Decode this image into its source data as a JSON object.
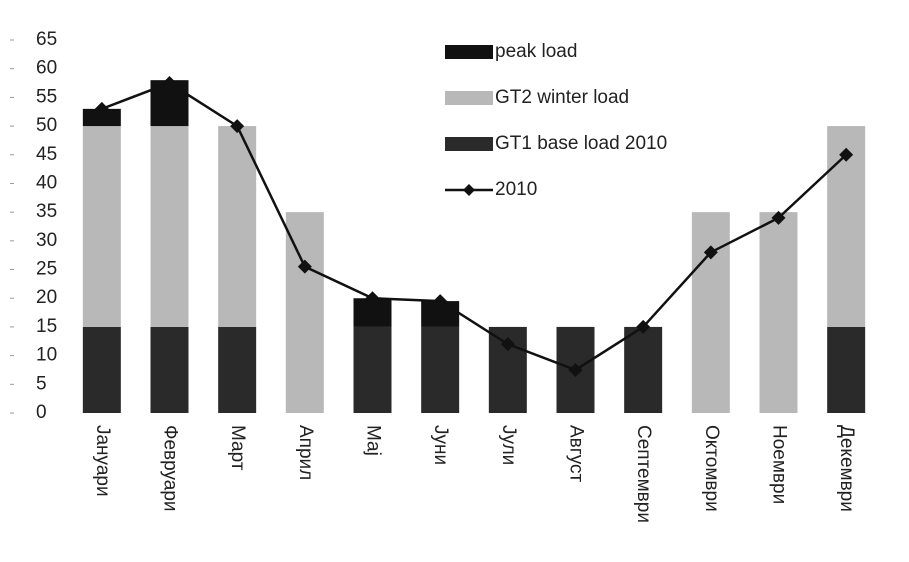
{
  "chart_data": {
    "type": "bar",
    "stacked": true,
    "categories": [
      "Јануари",
      "Февруари",
      "Март",
      "Април",
      "Мај",
      "Јуни",
      "Јули",
      "Август",
      "Септември",
      "Октомври",
      "Ноември",
      "Декември"
    ],
    "series": [
      {
        "name": "peak load",
        "type": "bar",
        "color": "#111111",
        "values": [
          3,
          8,
          0,
          0,
          5,
          4.5,
          0,
          0,
          0,
          0,
          0,
          0
        ]
      },
      {
        "name": "GT2  winter load",
        "type": "bar",
        "color": "#b8b8b8",
        "values": [
          35,
          35,
          35,
          35,
          0,
          0,
          0,
          0,
          0,
          35,
          35,
          35
        ]
      },
      {
        "name": "GT1  base load 2010",
        "type": "bar",
        "color": "#2a2a2a",
        "values": [
          15,
          15,
          15,
          0,
          15,
          15,
          15,
          15,
          15,
          0,
          0,
          15
        ]
      },
      {
        "name": "2010",
        "type": "line",
        "color": "#111111",
        "values": [
          53,
          57.5,
          50,
          25.5,
          20,
          19.5,
          12,
          7.5,
          15,
          28,
          34,
          45
        ]
      }
    ],
    "ylim": [
      0,
      65
    ],
    "yticks": [
      0,
      5,
      10,
      15,
      20,
      25,
      30,
      35,
      40,
      45,
      50,
      55,
      60,
      65
    ]
  }
}
